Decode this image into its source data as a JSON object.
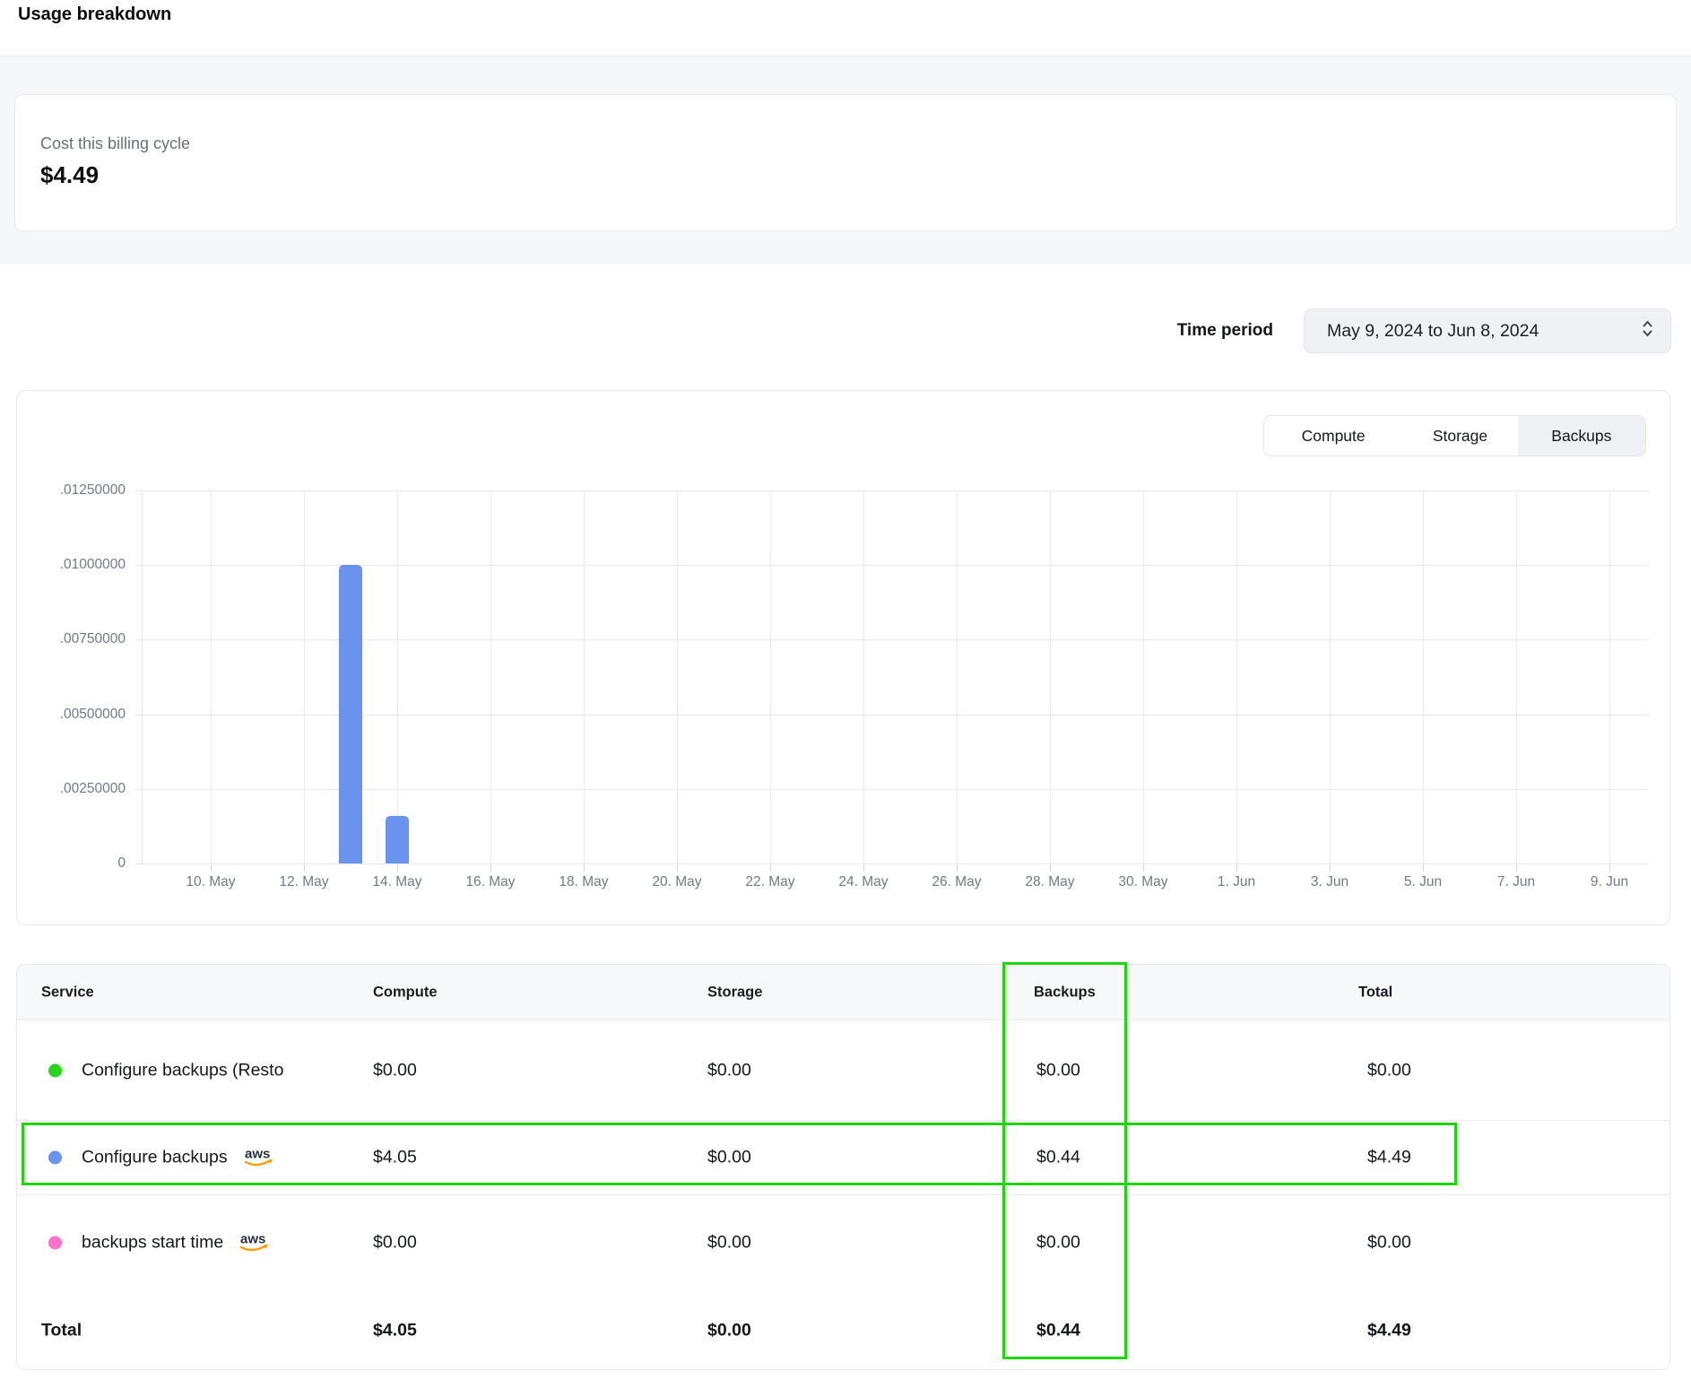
{
  "page": {
    "title": "Usage breakdown"
  },
  "summary": {
    "label": "Cost this billing cycle",
    "value": "$4.49"
  },
  "time_period": {
    "label": "Time period",
    "value": "May 9, 2024 to Jun 8, 2024"
  },
  "chart": {
    "tabs": [
      {
        "label": "Compute",
        "selected": false
      },
      {
        "label": "Storage",
        "selected": false
      },
      {
        "label": "Backups",
        "selected": true
      }
    ]
  },
  "chart_data": {
    "type": "bar",
    "context": "Backups usage cost per day",
    "y_ticks": [
      ".01250000",
      ".01000000",
      ".00750000",
      ".00500000",
      ".00250000",
      "0"
    ],
    "ylim": [
      0,
      0.0125
    ],
    "x_ticks": [
      "10. May",
      "12. May",
      "14. May",
      "16. May",
      "18. May",
      "20. May",
      "22. May",
      "24. May",
      "26. May",
      "28. May",
      "30. May",
      "1. Jun",
      "3. Jun",
      "5. Jun",
      "7. Jun",
      "9. Jun"
    ],
    "bars": [
      {
        "x_label": "13. May",
        "day_offset_from_first_tick": 3,
        "value": 0.01
      },
      {
        "x_label": "14. May",
        "day_offset_from_first_tick": 4,
        "value": 0.0016
      }
    ],
    "bar_color": "#6a93ee",
    "grid": true,
    "legend_position": "none"
  },
  "table": {
    "columns": [
      "Service",
      "Compute",
      "Storage",
      "Backups",
      "Total"
    ],
    "rows": [
      {
        "service": "Configure backups (Resto",
        "dot_color": "#2bd41c",
        "aws_icon": false,
        "compute": "$0.00",
        "storage": "$0.00",
        "backups": "$0.00",
        "total": "$0.00"
      },
      {
        "service": "Configure backups",
        "dot_color": "#6a93ee",
        "aws_icon": true,
        "compute": "$4.05",
        "storage": "$0.00",
        "backups": "$0.44",
        "total": "$4.49"
      },
      {
        "service": "backups start time",
        "dot_color": "#f973cd",
        "aws_icon": true,
        "compute": "$0.00",
        "storage": "$0.00",
        "backups": "$0.00",
        "total": "$0.00"
      }
    ],
    "total_row": {
      "label": "Total",
      "compute": "$4.05",
      "storage": "$0.00",
      "backups": "$0.44",
      "total": "$4.49"
    }
  },
  "annotations": {
    "color": "#22d40e"
  }
}
